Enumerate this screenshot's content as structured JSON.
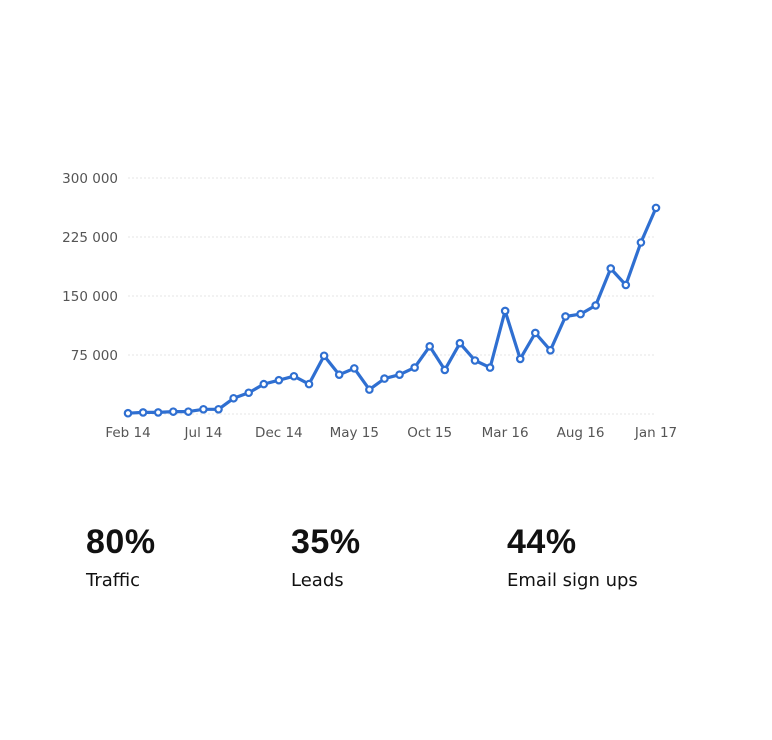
{
  "chart_data": {
    "type": "line",
    "title": "",
    "xlabel": "",
    "ylabel": "",
    "ylim": [
      0,
      300000
    ],
    "grid": true,
    "x_tick_labels": [
      "Feb 14",
      "Jul 14",
      "Dec 14",
      "May 15",
      "Oct 15",
      "Mar 16",
      "Aug 16",
      "Jan 17"
    ],
    "y_tick_values": [
      75000,
      150000,
      225000,
      300000
    ],
    "y_tick_labels": [
      "75 000",
      "150 000",
      "225 000",
      "300 000"
    ],
    "x": [
      "Feb 14",
      "Mar 14",
      "Apr 14",
      "May 14",
      "Jun 14",
      "Jul 14",
      "Aug 14",
      "Sep 14",
      "Oct 14",
      "Nov 14",
      "Dec 14",
      "Jan 15",
      "Feb 15",
      "Mar 15",
      "Apr 15",
      "May 15",
      "Jun 15",
      "Jul 15",
      "Aug 15",
      "Sep 15",
      "Oct 15",
      "Nov 15",
      "Dec 15",
      "Jan 16",
      "Feb 16",
      "Mar 16",
      "Apr 16",
      "May 16",
      "Jun 16",
      "Jul 16",
      "Aug 16",
      "Sep 16",
      "Oct 16",
      "Nov 16",
      "Dec 16",
      "Jan 17"
    ],
    "series": [
      {
        "values": [
          1000,
          2000,
          2000,
          3000,
          3000,
          6000,
          6000,
          20000,
          27000,
          38000,
          43000,
          48000,
          38000,
          74000,
          50000,
          58000,
          31000,
          45000,
          50000,
          59000,
          86000,
          56000,
          90000,
          68000,
          59000,
          131000,
          70000,
          103000,
          81000,
          124000,
          127000,
          138000,
          185000,
          164000,
          218000,
          262000
        ],
        "color": "#2f6fd1"
      }
    ]
  },
  "stats": [
    {
      "value": "80%",
      "label": "Traffic"
    },
    {
      "value": "35%",
      "label": "Leads"
    },
    {
      "value": "44%",
      "label": "Email sign ups"
    }
  ]
}
